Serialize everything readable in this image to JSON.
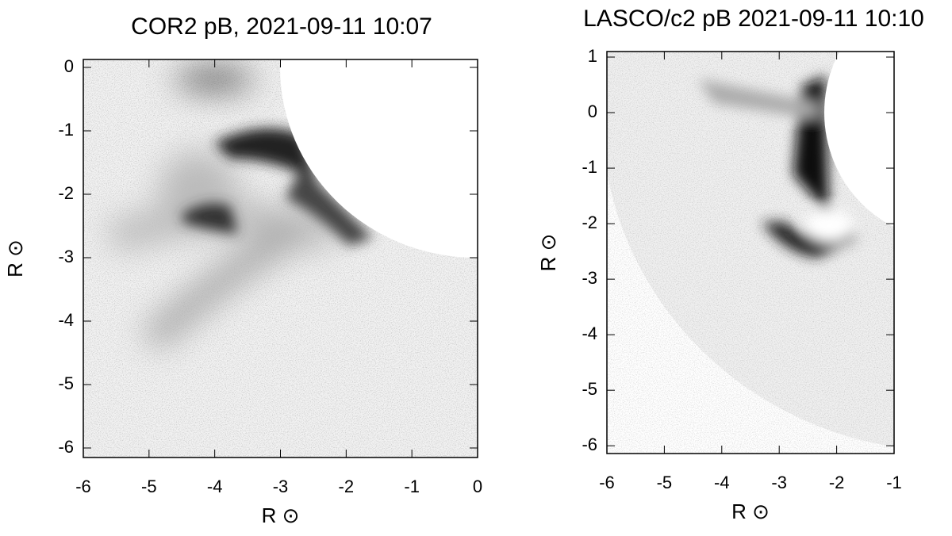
{
  "chart_data": [
    {
      "type": "image",
      "title": "COR2 pB, 2021-09-11 10:07",
      "xlabel": "R ⊙",
      "ylabel": "R ⊙",
      "xlim": [
        -6,
        0
      ],
      "ylim": [
        -6.15,
        0.125
      ],
      "xticks": [
        -6,
        -5,
        -4,
        -3,
        -2,
        -1,
        0
      ],
      "yticks": [
        0,
        -1,
        -2,
        -3,
        -4,
        -5,
        -6
      ]
    },
    {
      "type": "image",
      "title": "LASCO/c2 pB 2021-09-11 10:10",
      "xlabel": "R ⊙",
      "ylabel": "R ⊙",
      "xlim": [
        -6,
        -1
      ],
      "ylim": [
        -6.14,
        1.1
      ],
      "xticks": [
        -6,
        -5,
        -4,
        -3,
        -2,
        -1
      ],
      "yticks": [
        1,
        0,
        -1,
        -2,
        -3,
        -4,
        -5,
        -6
      ]
    }
  ]
}
